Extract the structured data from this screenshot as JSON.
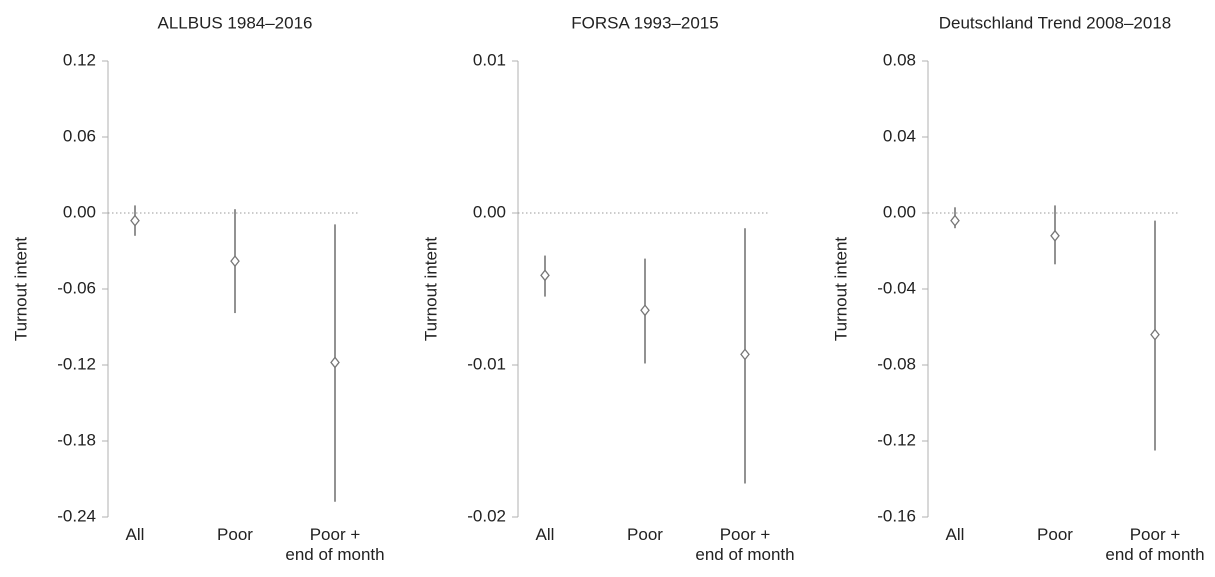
{
  "chart_data": [
    {
      "type": "errorbar",
      "title": "ALLBUS 1984–2016",
      "y_label": "Turnout intent",
      "categories": [
        "All",
        "Poor",
        "Poor +\nend of month"
      ],
      "values": [
        -0.006,
        -0.038,
        -0.118
      ],
      "lower": [
        -0.018,
        -0.079,
        -0.228
      ],
      "upper": [
        0.006,
        0.003,
        -0.009
      ],
      "color": "#777777",
      "ylim": [
        -0.24,
        0.12
      ],
      "yticks": [
        0.12,
        0.06,
        {
          "value": 0,
          "label": "0.00"
        },
        -0.06,
        -0.12,
        -0.18,
        -0.24
      ],
      "zero_line": true
    },
    {
      "type": "errorbar",
      "title": "FORSA 1993–2015",
      "y_label": "Turnout intent",
      "categories": [
        "All",
        "Poor",
        "Poor +\nend of month"
      ],
      "values": [
        -0.0041,
        -0.0064,
        -0.0093
      ],
      "lower": [
        -0.0055,
        -0.0099,
        -0.0178
      ],
      "upper": [
        -0.0028,
        -0.003,
        -0.001
      ],
      "color": "#777777",
      "ylim": [
        -0.02,
        0.01
      ],
      "yticks": [
        0.01,
        {
          "value": 0,
          "label": "0.00"
        },
        -0.01,
        -0.02
      ],
      "zero_line": true
    },
    {
      "type": "errorbar",
      "title": "Deutschland Trend 2008–2018",
      "y_label": "Turnout intent",
      "categories": [
        "All",
        "Poor",
        "Poor +\nend of month"
      ],
      "values": [
        -0.004,
        -0.012,
        -0.064
      ],
      "lower": [
        -0.008,
        -0.027,
        -0.125
      ],
      "upper": [
        0.003,
        0.004,
        -0.004
      ],
      "color": "#777777",
      "ylim": [
        -0.16,
        0.08
      ],
      "yticks": [
        0.08,
        0.04,
        {
          "value": 0,
          "label": "0.00"
        },
        -0.04,
        -0.08,
        -0.12,
        -0.16
      ],
      "zero_line": true
    }
  ]
}
